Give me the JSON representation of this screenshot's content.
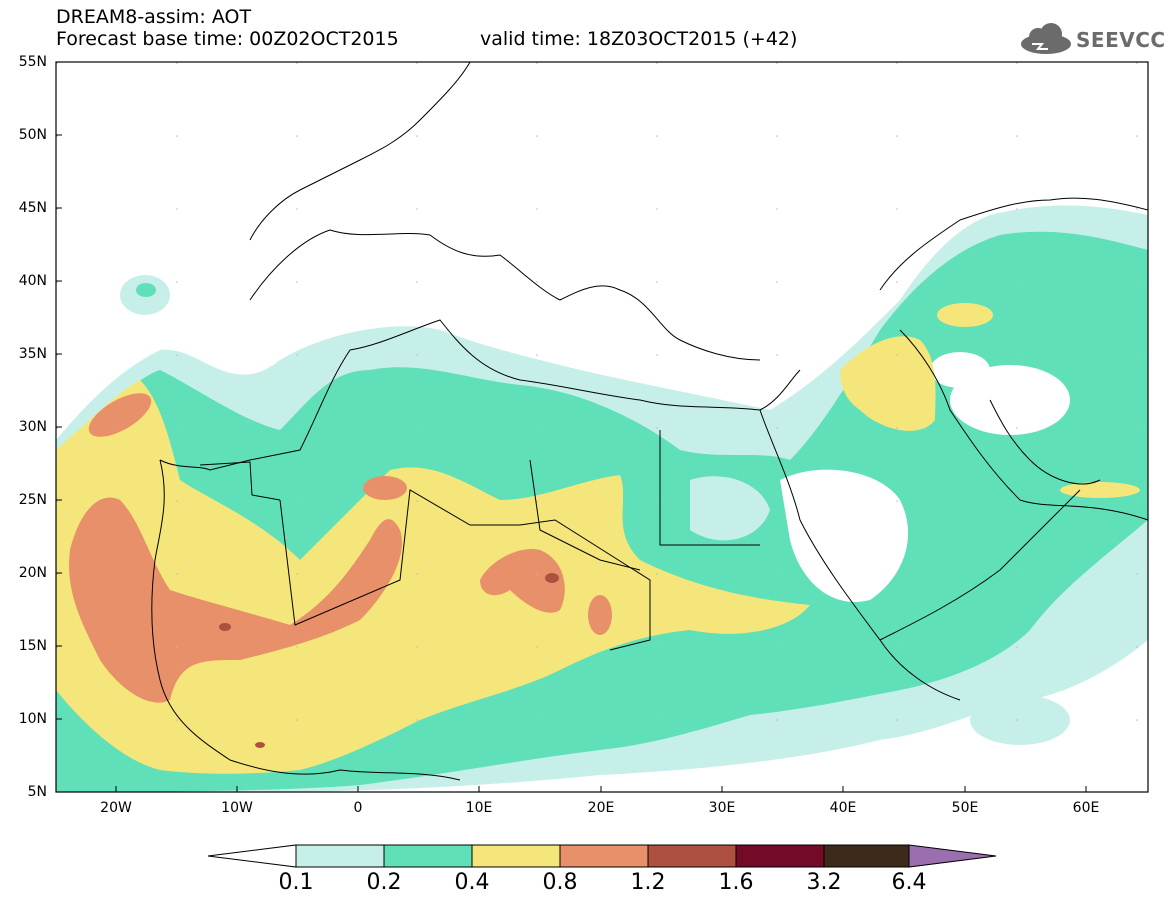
{
  "header": {
    "title": "DREAM8-assim: AOT",
    "base_time": "Forecast base time: 00Z02OCT2015",
    "valid_time": "valid time: 18Z03OCT2015 (+42)"
  },
  "logo": {
    "text": "SEEVCCC",
    "icon": "cloud-icon"
  },
  "axes": {
    "lat_labels": [
      "55N",
      "50N",
      "45N",
      "40N",
      "35N",
      "30N",
      "25N",
      "20N",
      "15N",
      "10N",
      "5N"
    ],
    "lon_labels": [
      "20W",
      "10W",
      "0",
      "10E",
      "20E",
      "30E",
      "40E",
      "50E",
      "60E"
    ],
    "lon_range": [
      -25,
      65
    ],
    "lat_range": [
      5,
      55
    ]
  },
  "legend": {
    "labels": [
      "0.1",
      "0.2",
      "0.4",
      "0.8",
      "1.2",
      "1.6",
      "3.2",
      "6.4"
    ],
    "colors": {
      "under": "#ffffff",
      "c1": "#c7efe9",
      "c2": "#5fe0b8",
      "c3": "#f4e67a",
      "c4": "#e8906a",
      "c5": "#ad5040",
      "c6": "#720a28",
      "c7": "#3d2a1a",
      "over": "#9a6fb0"
    }
  }
}
